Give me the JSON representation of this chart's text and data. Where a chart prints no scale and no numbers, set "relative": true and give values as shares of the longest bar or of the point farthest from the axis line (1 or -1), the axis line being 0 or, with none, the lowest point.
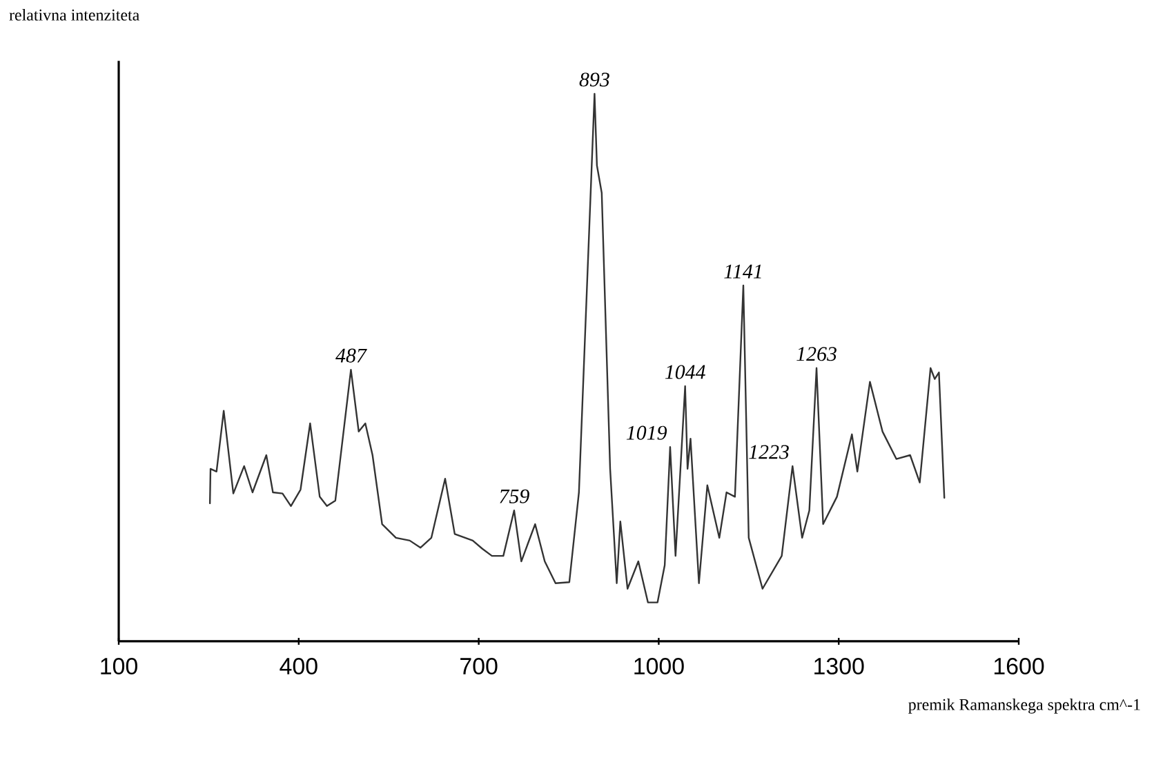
{
  "chart_data": {
    "type": "line",
    "relative": true,
    "xlabel": "premik Ramanskega spektra cm^-1",
    "ylabel": "relativna intenziteta",
    "xlim": [
      100,
      1600
    ],
    "xticks": [
      100,
      400,
      700,
      1000,
      1300,
      1600
    ],
    "series": [
      {
        "color": "#333333",
        "x": [
          252,
          253,
          263,
          275,
          291,
          309,
          323,
          346,
          357,
          373,
          387,
          403,
          419,
          435,
          447,
          461,
          487,
          500,
          511,
          523,
          539,
          562,
          585,
          603,
          621,
          644,
          660,
          690,
          706,
          722,
          741,
          759,
          771,
          794,
          810,
          828,
          851,
          867,
          893,
          897,
          905,
          919,
          930,
          936,
          948,
          966,
          982,
          998,
          1010,
          1019,
          1028,
          1044,
          1048,
          1053,
          1067,
          1081,
          1092,
          1101,
          1113,
          1127,
          1141,
          1150,
          1173,
          1205,
          1223,
          1239,
          1251,
          1263,
          1274,
          1297,
          1322,
          1331,
          1352,
          1373,
          1396,
          1419,
          1435,
          1453,
          1460,
          1467,
          1476
        ],
        "values": [
          0.252,
          0.315,
          0.31,
          0.421,
          0.27,
          0.32,
          0.272,
          0.34,
          0.272,
          0.27,
          0.247,
          0.277,
          0.398,
          0.264,
          0.247,
          0.257,
          0.496,
          0.383,
          0.398,
          0.34,
          0.214,
          0.189,
          0.184,
          0.171,
          0.189,
          0.297,
          0.196,
          0.184,
          0.169,
          0.156,
          0.156,
          0.239,
          0.146,
          0.214,
          0.146,
          0.106,
          0.108,
          0.272,
          1.0,
          0.869,
          0.819,
          0.315,
          0.106,
          0.219,
          0.096,
          0.146,
          0.071,
          0.071,
          0.139,
          0.355,
          0.156,
          0.466,
          0.315,
          0.37,
          0.106,
          0.285,
          0.232,
          0.189,
          0.272,
          0.264,
          0.65,
          0.189,
          0.096,
          0.156,
          0.32,
          0.189,
          0.239,
          0.499,
          0.214,
          0.264,
          0.378,
          0.31,
          0.474,
          0.383,
          0.333,
          0.34,
          0.29,
          0.499,
          0.479,
          0.491,
          0.262
        ]
      }
    ],
    "annotations": [
      {
        "text": "487",
        "x": 487,
        "y": 0.496
      },
      {
        "text": "759",
        "x": 759,
        "y": 0.239
      },
      {
        "text": "893",
        "x": 893,
        "y": 1.0
      },
      {
        "text": "1019",
        "x": 1019,
        "y": 0.355
      },
      {
        "text": "1044",
        "x": 1044,
        "y": 0.466
      },
      {
        "text": "1141",
        "x": 1141,
        "y": 0.65
      },
      {
        "text": "1223",
        "x": 1223,
        "y": 0.32
      },
      {
        "text": "1263",
        "x": 1263,
        "y": 0.499
      }
    ]
  }
}
